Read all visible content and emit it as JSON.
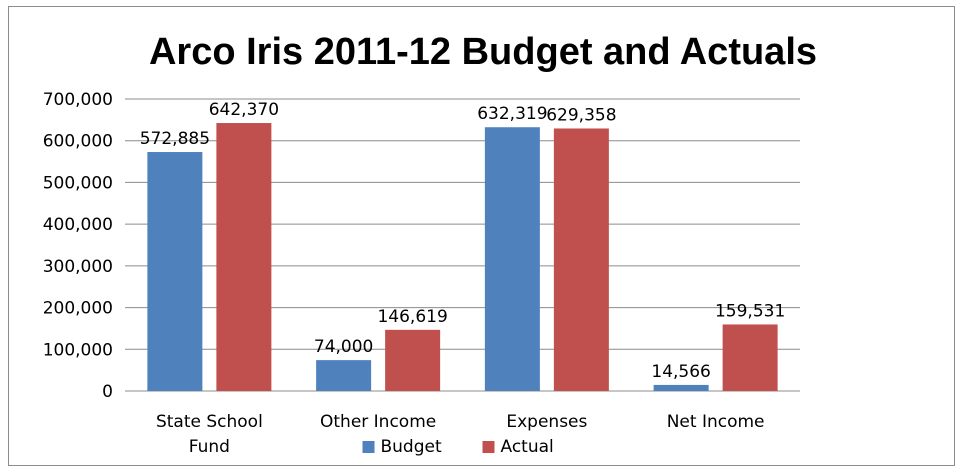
{
  "chart_data": {
    "type": "bar",
    "title": "Arco Iris 2011-12 Budget and Actuals",
    "categories": [
      [
        "State School",
        "Fund"
      ],
      [
        "Other Income"
      ],
      [
        "Expenses"
      ],
      [
        "Net Income"
      ]
    ],
    "series": [
      {
        "name": "Budget",
        "color": "#4f81bd",
        "values": [
          572885,
          74000,
          632319,
          14566
        ]
      },
      {
        "name": "Actual",
        "color": "#c0504d",
        "values": [
          642370,
          146619,
          629358,
          159531
        ]
      }
    ],
    "data_labels": [
      [
        "572,885",
        "74,000",
        "632,319",
        "14,566"
      ],
      [
        "642,370",
        "146,619",
        "629,358",
        "159,531"
      ]
    ],
    "y_ticks": [
      0,
      100000,
      200000,
      300000,
      400000,
      500000,
      600000,
      700000
    ],
    "y_tick_labels": [
      "0",
      "100,000",
      "200,000",
      "300,000",
      "400,000",
      "500,000",
      "600,000",
      "700,000"
    ],
    "ylim": [
      0,
      700000
    ],
    "grid": true,
    "legend": "bottom",
    "xlabel": "",
    "ylabel": ""
  }
}
